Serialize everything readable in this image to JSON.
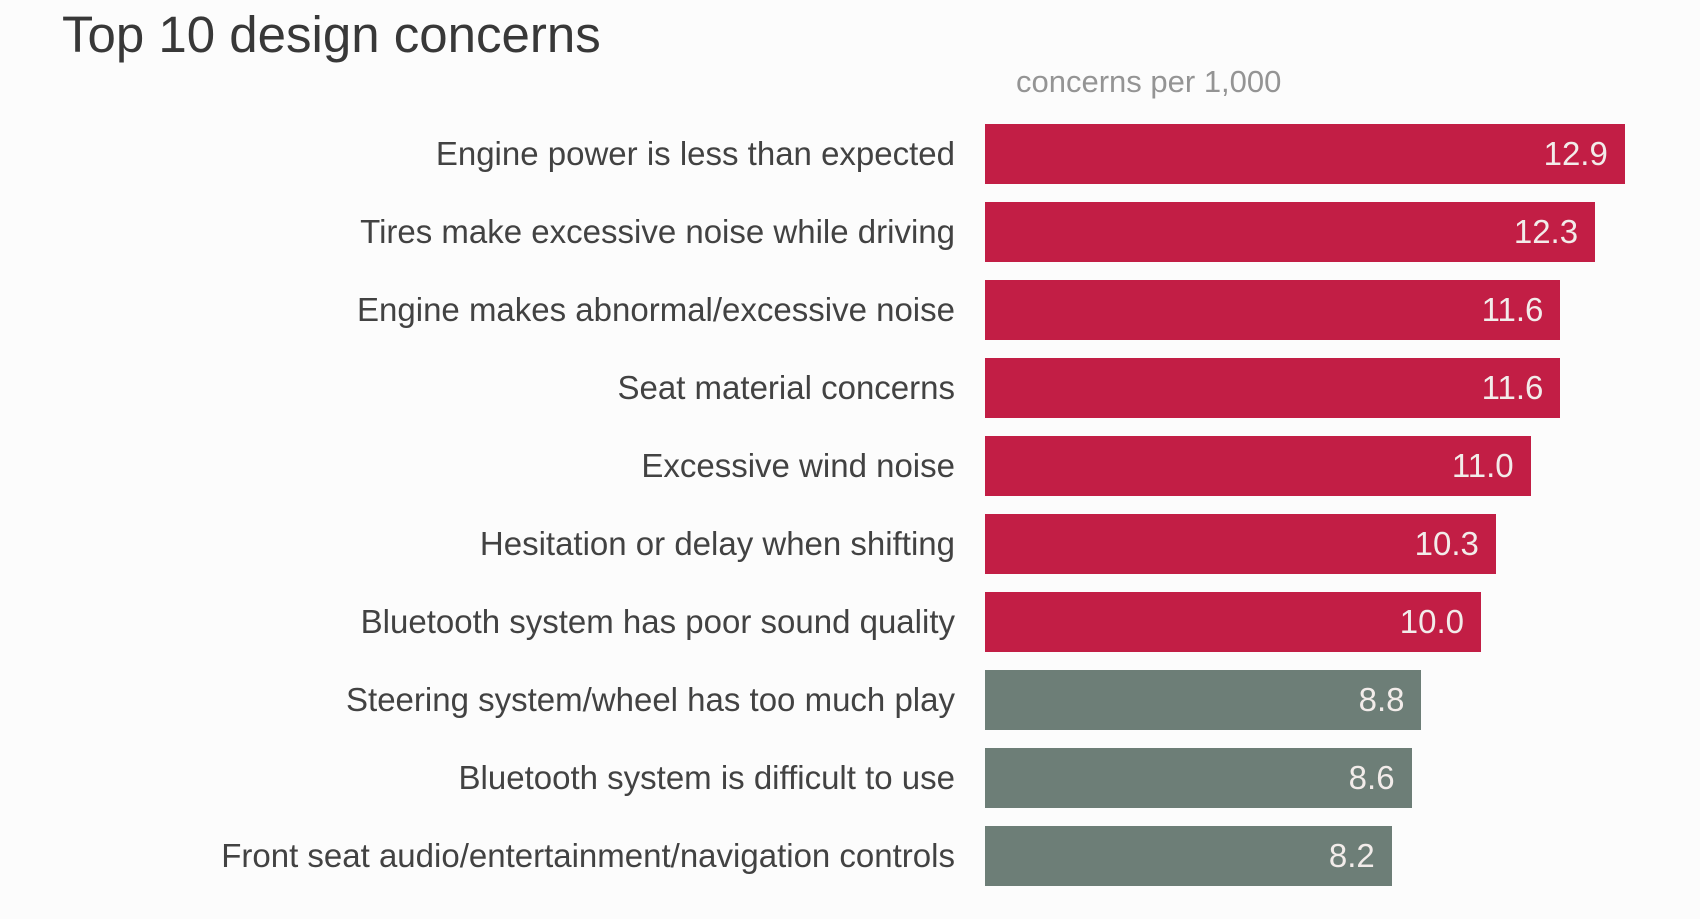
{
  "chart_data": {
    "type": "bar",
    "orientation": "horizontal",
    "title": "Top 10 design concerns",
    "subtitle": "concerns per 1,000",
    "xlabel": "",
    "ylabel": "",
    "xlim": [
      0,
      13.3
    ],
    "grid": false,
    "legend": "none",
    "value_labels": "inside-end",
    "colors": {
      "highlight_bar": "#c21e45",
      "muted_bar": "#6d7e77",
      "value_text": "#f2ecea",
      "title_text": "#383838",
      "label_text": "#424242",
      "subtitle_text": "#949494"
    },
    "items": [
      {
        "label": "Engine power is less than expected",
        "value": 12.9,
        "value_text": "12.9",
        "group": "highlight_bar"
      },
      {
        "label": "Tires make excessive noise while driving",
        "value": 12.3,
        "value_text": "12.3",
        "group": "highlight_bar"
      },
      {
        "label": "Engine makes abnormal/excessive noise",
        "value": 11.6,
        "value_text": "11.6",
        "group": "highlight_bar"
      },
      {
        "label": "Seat material concerns",
        "value": 11.6,
        "value_text": "11.6",
        "group": "highlight_bar"
      },
      {
        "label": "Excessive wind noise",
        "value": 11.0,
        "value_text": "11.0",
        "group": "highlight_bar"
      },
      {
        "label": "Hesitation or delay when shifting",
        "value": 10.3,
        "value_text": "10.3",
        "group": "highlight_bar"
      },
      {
        "label": "Bluetooth system has poor sound quality",
        "value": 10.0,
        "value_text": "10.0",
        "group": "highlight_bar"
      },
      {
        "label": "Steering system/wheel has too much play",
        "value": 8.8,
        "value_text": "8.8",
        "group": "muted_bar"
      },
      {
        "label": "Bluetooth system is difficult to use",
        "value": 8.6,
        "value_text": "8.6",
        "group": "muted_bar"
      },
      {
        "label": "Front seat audio/entertainment/navigation controls",
        "value": 8.2,
        "value_text": "8.2",
        "group": "muted_bar"
      }
    ]
  }
}
